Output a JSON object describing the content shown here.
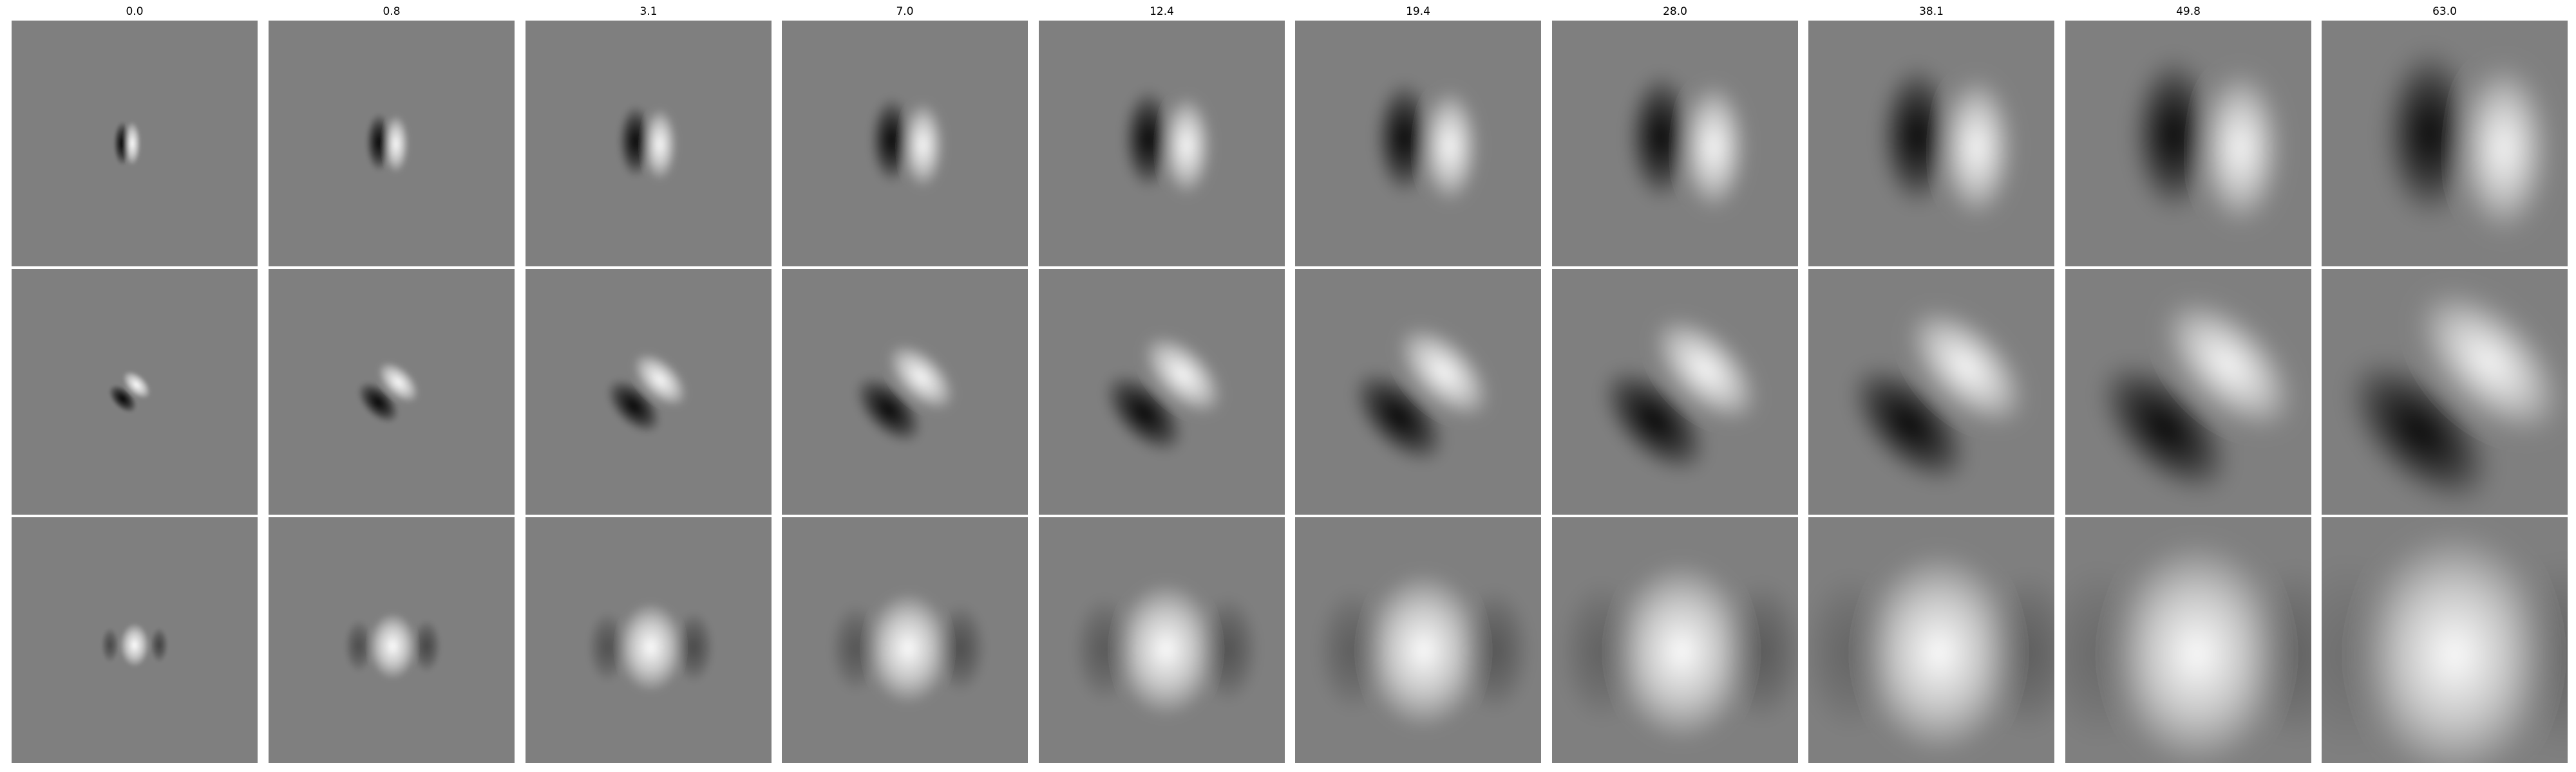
{
  "column_titles": [
    "0.0",
    "0.8",
    "3.1",
    "7.0",
    "12.4",
    "19.4",
    "28.0",
    "38.1",
    "49.8",
    "63.0"
  ],
  "rows": [
    {
      "pattern": "vertical-odd-filter"
    },
    {
      "pattern": "diagonal-odd-filter"
    },
    {
      "pattern": "even-blob-filter"
    }
  ],
  "colors": {
    "background_gray": "#7f7f7f",
    "figure_background": "#ffffff"
  }
}
